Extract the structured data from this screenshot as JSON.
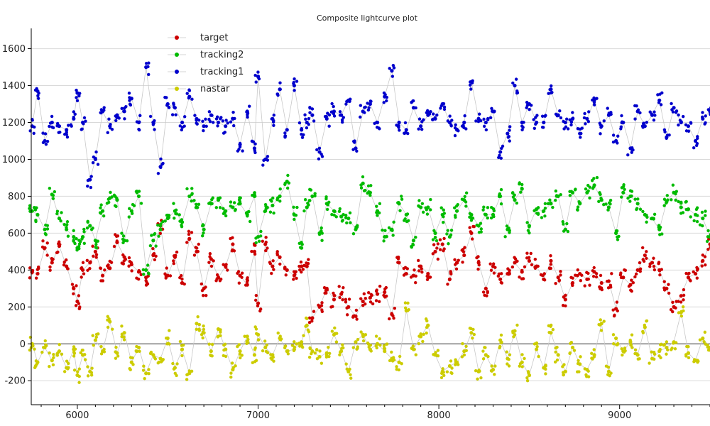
{
  "chart_data": {
    "type": "scatter",
    "title": "Composite lightcurve plot",
    "xlabel": "",
    "ylabel": "",
    "xlim": [
      5745,
      9500
    ],
    "ylim": [
      -330,
      1710
    ],
    "x_ticks": [
      6000,
      7000,
      8000,
      9000
    ],
    "x_tick_labels": [
      "6000",
      "7000",
      "8000",
      "9000"
    ],
    "y_ticks": [
      -200,
      0,
      200,
      400,
      600,
      800,
      1000,
      1200,
      1400,
      1600
    ],
    "y_tick_labels": [
      "-200",
      "0",
      "200",
      "400",
      "600",
      "800",
      "1000",
      "1200",
      "1400",
      "1600"
    ],
    "grid": "horizontal",
    "zero_line": true,
    "connecting_lines": true,
    "legend_position": "top-left",
    "series": [
      {
        "name": "target",
        "color": "#cc0000",
        "x": [
          5750,
          5780,
          5820,
          5860,
          5900,
          5940,
          5980,
          6000,
          6030,
          6070,
          6100,
          6140,
          6180,
          6220,
          6260,
          6300,
          6340,
          6380,
          6420,
          6460,
          6500,
          6540,
          6580,
          6620,
          6660,
          6700,
          6740,
          6780,
          6820,
          6860,
          6900,
          6940,
          6980,
          7000,
          7040,
          7080,
          7120,
          7160,
          7200,
          7240,
          7270,
          7300,
          7340,
          7380,
          7420,
          7460,
          7500,
          7540,
          7580,
          7620,
          7660,
          7700,
          7740,
          7780,
          7820,
          7860,
          7900,
          7940,
          7980,
          8020,
          8060,
          8100,
          8140,
          8180,
          8220,
          8260,
          8300,
          8340,
          8380,
          8420,
          8460,
          8500,
          8540,
          8580,
          8620,
          8660,
          8700,
          8740,
          8780,
          8820,
          8860,
          8900,
          8940,
          8980,
          9020,
          9060,
          9100,
          9140,
          9180,
          9220,
          9260,
          9300,
          9340,
          9380,
          9420,
          9460,
          9500
        ],
        "y": [
          390,
          380,
          520,
          440,
          530,
          420,
          300,
          230,
          400,
          440,
          500,
          370,
          410,
          550,
          470,
          430,
          390,
          360,
          480,
          640,
          370,
          470,
          330,
          570,
          500,
          300,
          460,
          360,
          420,
          540,
          370,
          320,
          500,
          220,
          540,
          420,
          470,
          400,
          370,
          420,
          420,
          140,
          200,
          300,
          240,
          270,
          200,
          150,
          230,
          250,
          270,
          280,
          160,
          440,
          380,
          370,
          420,
          380,
          500,
          540,
          350,
          440,
          480,
          600,
          440,
          300,
          420,
          350,
          380,
          440,
          390,
          450,
          420,
          350,
          450,
          360,
          240,
          330,
          380,
          350,
          390,
          330,
          340,
          190,
          360,
          320,
          400,
          480,
          440,
          400,
          300,
          200,
          260,
          360,
          380,
          450,
          540
        ]
      },
      {
        "name": "tracking2",
        "color": "#00bb00",
        "x": [
          5750,
          5780,
          5820,
          5860,
          5900,
          5940,
          5980,
          6000,
          6030,
          6070,
          6100,
          6140,
          6180,
          6220,
          6260,
          6300,
          6340,
          6380,
          6420,
          6460,
          6500,
          6540,
          6580,
          6620,
          6660,
          6700,
          6740,
          6780,
          6820,
          6860,
          6900,
          6940,
          6980,
          7000,
          7040,
          7080,
          7120,
          7160,
          7200,
          7240,
          7270,
          7300,
          7340,
          7380,
          7420,
          7460,
          7500,
          7540,
          7580,
          7620,
          7660,
          7700,
          7740,
          7780,
          7820,
          7860,
          7900,
          7940,
          7980,
          8020,
          8060,
          8100,
          8140,
          8180,
          8220,
          8260,
          8300,
          8340,
          8380,
          8420,
          8460,
          8500,
          8540,
          8580,
          8620,
          8660,
          8700,
          8740,
          8780,
          8820,
          8860,
          8900,
          8940,
          8980,
          9020,
          9060,
          9100,
          9140,
          9180,
          9220,
          9260,
          9300,
          9340,
          9380,
          9420,
          9460,
          9500
        ],
        "y": [
          720,
          700,
          620,
          810,
          680,
          620,
          580,
          520,
          580,
          640,
          560,
          720,
          790,
          780,
          560,
          720,
          800,
          400,
          560,
          620,
          680,
          720,
          660,
          800,
          740,
          620,
          760,
          780,
          720,
          740,
          760,
          700,
          800,
          580,
          720,
          750,
          800,
          880,
          700,
          520,
          740,
          800,
          600,
          760,
          720,
          690,
          680,
          620,
          870,
          820,
          720,
          580,
          620,
          760,
          700,
          560,
          740,
          740,
          600,
          700,
          580,
          720,
          780,
          700,
          640,
          700,
          700,
          800,
          620,
          780,
          840,
          640,
          730,
          720,
          760,
          800,
          620,
          820,
          760,
          820,
          860,
          780,
          740,
          600,
          820,
          800,
          760,
          700,
          680,
          620,
          770,
          820,
          740,
          730,
          700,
          680,
          580
        ]
      },
      {
        "name": "tracking1",
        "color": "#0000cc",
        "x": [
          5750,
          5780,
          5820,
          5860,
          5900,
          5940,
          5980,
          6000,
          6030,
          6070,
          6100,
          6140,
          6180,
          6220,
          6260,
          6300,
          6340,
          6380,
          6420,
          6460,
          6500,
          6540,
          6580,
          6620,
          6660,
          6700,
          6740,
          6780,
          6820,
          6860,
          6900,
          6940,
          6980,
          7000,
          7040,
          7080,
          7120,
          7160,
          7200,
          7240,
          7270,
          7300,
          7340,
          7380,
          7420,
          7460,
          7500,
          7540,
          7580,
          7620,
          7660,
          7700,
          7740,
          7780,
          7820,
          7860,
          7900,
          7940,
          7980,
          8020,
          8060,
          8100,
          8140,
          8180,
          8220,
          8260,
          8300,
          8340,
          8380,
          8420,
          8460,
          8500,
          8540,
          8580,
          8620,
          8660,
          8700,
          8740,
          8780,
          8820,
          8860,
          8900,
          8940,
          8980,
          9020,
          9060,
          9100,
          9140,
          9180,
          9220,
          9260,
          9300,
          9340,
          9380,
          9420,
          9460,
          9500
        ],
        "y": [
          1180,
          1370,
          1100,
          1200,
          1180,
          1160,
          1220,
          1360,
          1200,
          890,
          1000,
          1260,
          1180,
          1240,
          1260,
          1330,
          1200,
          1500,
          1200,
          960,
          1300,
          1280,
          1200,
          1340,
          1220,
          1180,
          1240,
          1200,
          1180,
          1220,
          1080,
          1260,
          1060,
          1450,
          1000,
          1220,
          1380,
          1160,
          1400,
          1160,
          1200,
          1240,
          1040,
          1220,
          1260,
          1240,
          1320,
          1060,
          1260,
          1300,
          1200,
          1340,
          1480,
          1200,
          1160,
          1280,
          1180,
          1240,
          1220,
          1300,
          1200,
          1160,
          1200,
          1420,
          1220,
          1200,
          1260,
          1040,
          1140,
          1400,
          1200,
          1300,
          1200,
          1200,
          1380,
          1240,
          1200,
          1220,
          1140,
          1220,
          1320,
          1180,
          1240,
          1100,
          1200,
          1060,
          1260,
          1180,
          1240,
          1320,
          1120,
          1280,
          1200,
          1180,
          1100,
          1220,
          1260
        ]
      },
      {
        "name": "nastar",
        "color": "#cccc00",
        "x": [
          5750,
          5780,
          5820,
          5860,
          5900,
          5940,
          5980,
          6000,
          6030,
          6070,
          6100,
          6140,
          6180,
          6220,
          6260,
          6300,
          6340,
          6380,
          6420,
          6460,
          6500,
          6540,
          6580,
          6620,
          6660,
          6700,
          6740,
          6780,
          6820,
          6860,
          6900,
          6940,
          6980,
          7000,
          7040,
          7080,
          7120,
          7160,
          7200,
          7240,
          7270,
          7300,
          7340,
          7380,
          7420,
          7460,
          7500,
          7540,
          7580,
          7620,
          7660,
          7700,
          7740,
          7780,
          7820,
          7860,
          7900,
          7940,
          7980,
          8020,
          8060,
          8100,
          8140,
          8180,
          8220,
          8260,
          8300,
          8340,
          8380,
          8420,
          8460,
          8500,
          8540,
          8580,
          8620,
          8660,
          8700,
          8740,
          8780,
          8820,
          8860,
          8900,
          8940,
          8980,
          9020,
          9060,
          9100,
          9140,
          9180,
          9220,
          9260,
          9300,
          9340,
          9380,
          9420,
          9460,
          9500
        ],
        "y": [
          0,
          -100,
          -20,
          -90,
          -40,
          -130,
          -30,
          -170,
          -60,
          -150,
          20,
          -40,
          120,
          -50,
          60,
          -100,
          -20,
          -160,
          -60,
          -80,
          30,
          -130,
          -30,
          -160,
          110,
          60,
          -40,
          80,
          -30,
          -140,
          -40,
          40,
          -60,
          50,
          -20,
          -60,
          30,
          -40,
          -30,
          10,
          100,
          -40,
          -70,
          -50,
          50,
          -40,
          -150,
          10,
          50,
          -30,
          0,
          -40,
          -80,
          -100,
          180,
          -30,
          40,
          100,
          -60,
          -150,
          -120,
          -100,
          -40,
          60,
          -150,
          -60,
          -140,
          20,
          -80,
          70,
          -100,
          -170,
          -30,
          -130,
          60,
          -60,
          -150,
          -20,
          -110,
          -140,
          -60,
          110,
          -150,
          30,
          -40,
          10,
          -60,
          90,
          -80,
          -40,
          -20,
          10,
          170,
          -50,
          -90,
          30,
          -20
        ]
      }
    ]
  }
}
